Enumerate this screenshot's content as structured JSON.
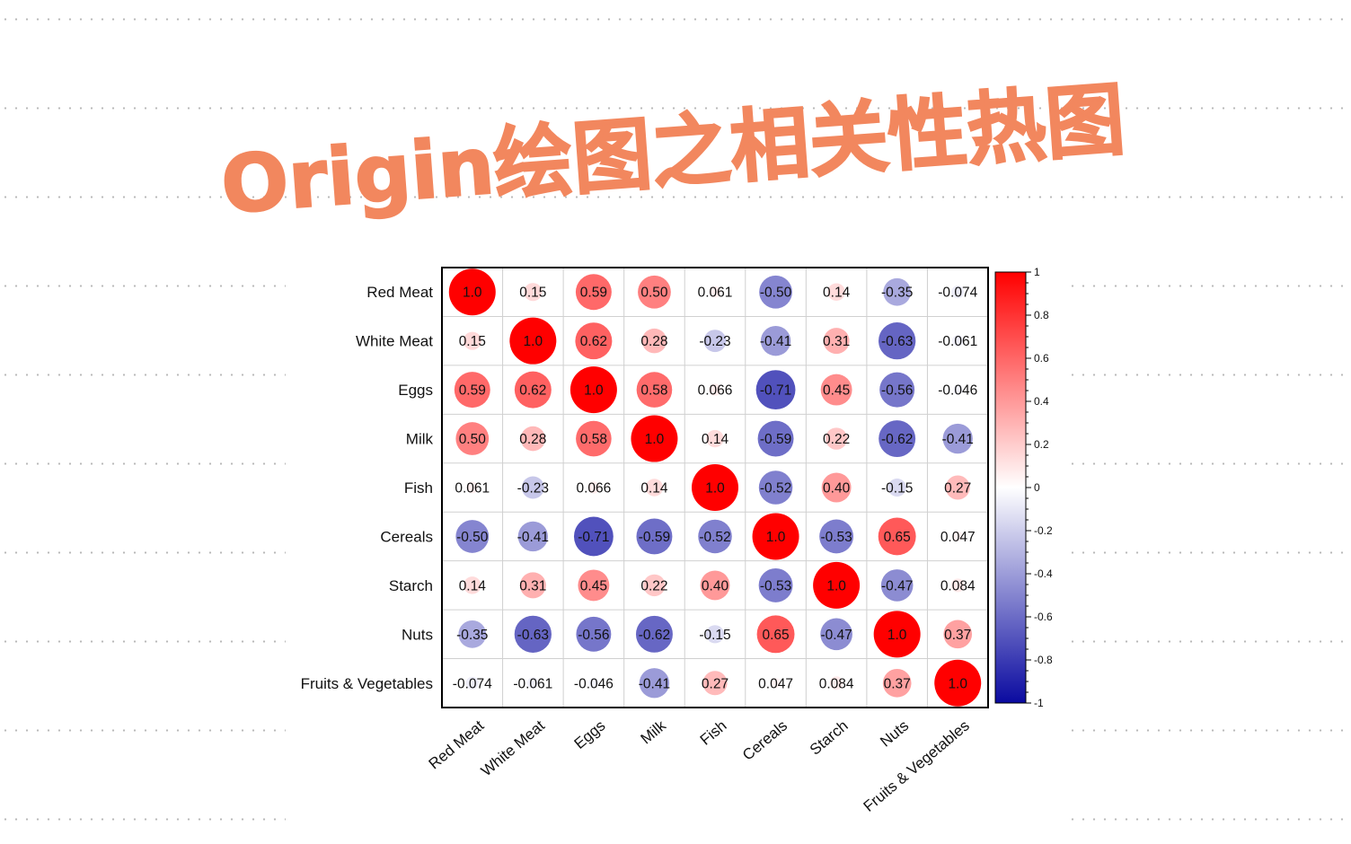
{
  "title": "Origin绘图之相关性热图",
  "colors": {
    "title": "#f2875e",
    "positive": "#ff0000",
    "neutral": "#ffffff",
    "negative": "#0a0aa0",
    "grid": "#d0d0d0",
    "frame": "#000000"
  },
  "chart_data": {
    "type": "heatmap",
    "variables": [
      "Red Meat",
      "White Meat",
      "Eggs",
      "Milk",
      "Fish",
      "Cereals",
      "Starch",
      "Nuts",
      "Fruits & Vegetables"
    ],
    "labels": [
      [
        "1.0",
        "0.15",
        "0.59",
        "0.50",
        "0.061",
        "-0.50",
        "0.14",
        "-0.35",
        "-0.074"
      ],
      [
        "0.15",
        "1.0",
        "0.62",
        "0.28",
        "-0.23",
        "-0.41",
        "0.31",
        "-0.63",
        "-0.061"
      ],
      [
        "0.59",
        "0.62",
        "1.0",
        "0.58",
        "0.066",
        "-0.71",
        "0.45",
        "-0.56",
        "-0.046"
      ],
      [
        "0.50",
        "0.28",
        "0.58",
        "1.0",
        "0.14",
        "-0.59",
        "0.22",
        "-0.62",
        "-0.41"
      ],
      [
        "0.061",
        "-0.23",
        "0.066",
        "0.14",
        "1.0",
        "-0.52",
        "0.40",
        "-0.15",
        "0.27"
      ],
      [
        "-0.50",
        "-0.41",
        "-0.71",
        "-0.59",
        "-0.52",
        "1.0",
        "-0.53",
        "0.65",
        "0.047"
      ],
      [
        "0.14",
        "0.31",
        "0.45",
        "0.22",
        "0.40",
        "-0.53",
        "1.0",
        "-0.47",
        "0.084"
      ],
      [
        "-0.35",
        "-0.63",
        "-0.56",
        "-0.62",
        "-0.15",
        "0.65",
        "-0.47",
        "1.0",
        "0.37"
      ],
      [
        "-0.074",
        "-0.061",
        "-0.046",
        "-0.41",
        "0.27",
        "0.047",
        "0.084",
        "0.37",
        "1.0"
      ]
    ],
    "colorbar": {
      "range": [
        -1,
        1
      ],
      "ticks": [
        "1",
        "0.8",
        "0.6",
        "0.4",
        "0.2",
        "0",
        "-0.2",
        "-0.4",
        "-0.6",
        "-0.8",
        "-1"
      ]
    }
  }
}
